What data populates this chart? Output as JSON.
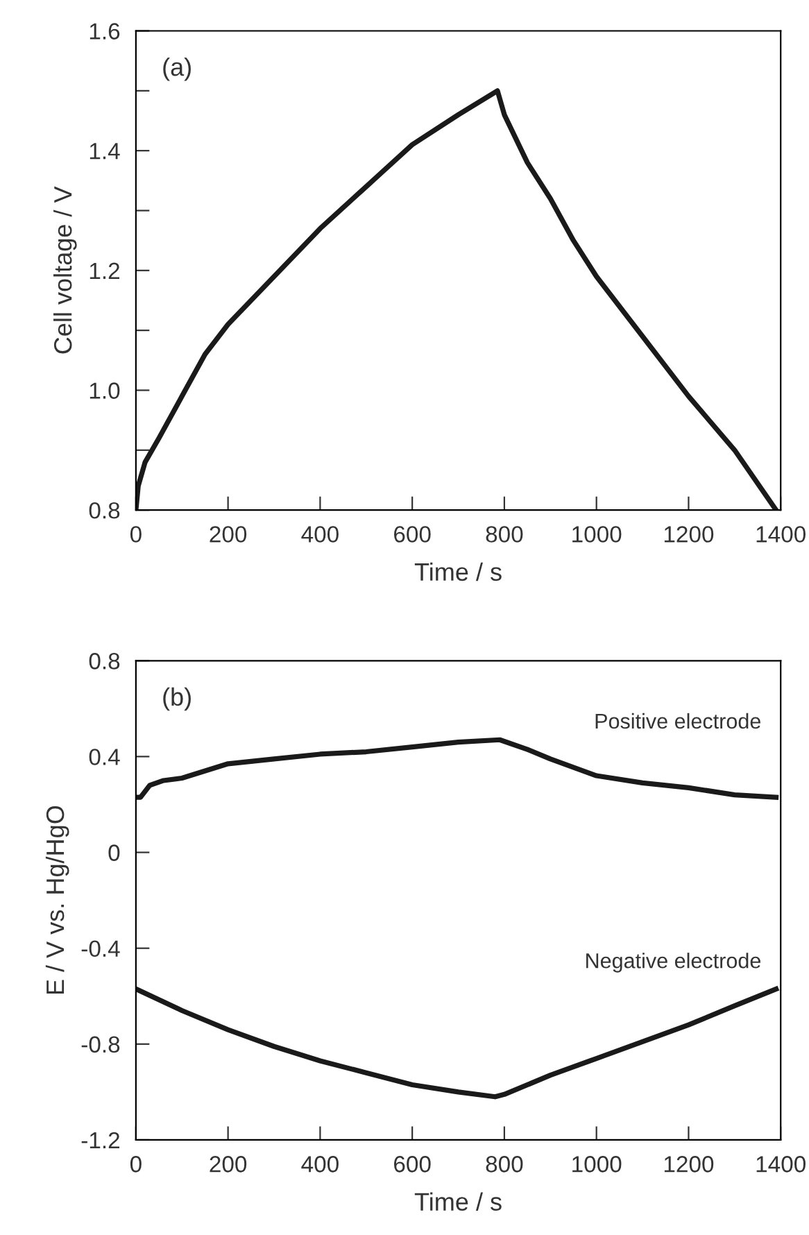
{
  "chart_data": [
    {
      "type": "line",
      "xlabel": "Time / s",
      "ylabel": "Cell voltage / V",
      "annotations": [
        "(a)"
      ],
      "xlim": [
        0,
        1400
      ],
      "ylim": [
        0.8,
        1.6
      ],
      "xticks": [
        0,
        200,
        400,
        600,
        800,
        1000,
        1200,
        1400
      ],
      "yticks": [
        {
          "value": 0.8,
          "label": "0.8"
        },
        {
          "value": 0.9,
          "label": null
        },
        {
          "value": 1.0,
          "label": "1.0"
        },
        {
          "value": 1.1,
          "label": null
        },
        {
          "value": 1.2,
          "label": "1.2"
        },
        {
          "value": 1.3,
          "label": null
        },
        {
          "value": 1.4,
          "label": "1.4"
        },
        {
          "value": 1.5,
          "label": null
        },
        {
          "value": 1.6,
          "label": "1.6"
        }
      ],
      "grid": false,
      "legend": false,
      "marker": "none",
      "line_style": "solid",
      "series": [
        {
          "color": "#1a1a1a",
          "x": [
            0,
            5,
            20,
            50,
            100,
            150,
            200,
            300,
            400,
            500,
            600,
            700,
            785,
            800,
            850,
            900,
            950,
            1000,
            1100,
            1200,
            1300,
            1390
          ],
          "values": [
            0.8,
            0.84,
            0.88,
            0.92,
            0.99,
            1.06,
            1.11,
            1.19,
            1.27,
            1.34,
            1.41,
            1.46,
            1.5,
            1.46,
            1.38,
            1.32,
            1.25,
            1.19,
            1.09,
            0.99,
            0.9,
            0.8
          ]
        }
      ]
    },
    {
      "type": "line",
      "xlabel": "Time / s",
      "ylabel": "E / V vs. Hg/HgO",
      "annotations": [
        "(b)"
      ],
      "xlim": [
        0,
        1400
      ],
      "ylim": [
        -1.2,
        0.8
      ],
      "xticks": [
        0,
        200,
        400,
        600,
        800,
        1000,
        1200,
        1400
      ],
      "yticks": [
        {
          "value": -1.2,
          "label": "-1.2"
        },
        {
          "value": -0.8,
          "label": "-0.8"
        },
        {
          "value": -0.4,
          "label": "-0.4"
        },
        0,
        0.4,
        0.8
      ],
      "grid": false,
      "legend": false,
      "marker": "none",
      "line_style": "solid",
      "series": [
        {
          "name": "Positive electrode",
          "color": "#1a1a1a",
          "x": [
            0,
            10,
            30,
            60,
            100,
            200,
            300,
            400,
            500,
            600,
            700,
            790,
            850,
            900,
            1000,
            1100,
            1200,
            1300,
            1390
          ],
          "values": [
            0.23,
            0.23,
            0.28,
            0.3,
            0.31,
            0.37,
            0.39,
            0.41,
            0.42,
            0.44,
            0.46,
            0.47,
            0.43,
            0.39,
            0.32,
            0.29,
            0.27,
            0.24,
            0.23
          ]
        },
        {
          "name": "Negative electrode",
          "color": "#1a1a1a",
          "x": [
            0,
            100,
            200,
            300,
            400,
            500,
            600,
            700,
            780,
            800,
            900,
            1000,
            1100,
            1200,
            1300,
            1390
          ],
          "values": [
            -0.57,
            -0.66,
            -0.74,
            -0.81,
            -0.87,
            -0.92,
            -0.97,
            -1.0,
            -1.02,
            -1.01,
            -0.93,
            -0.86,
            -0.79,
            -0.72,
            -0.64,
            -0.57
          ]
        }
      ]
    }
  ]
}
